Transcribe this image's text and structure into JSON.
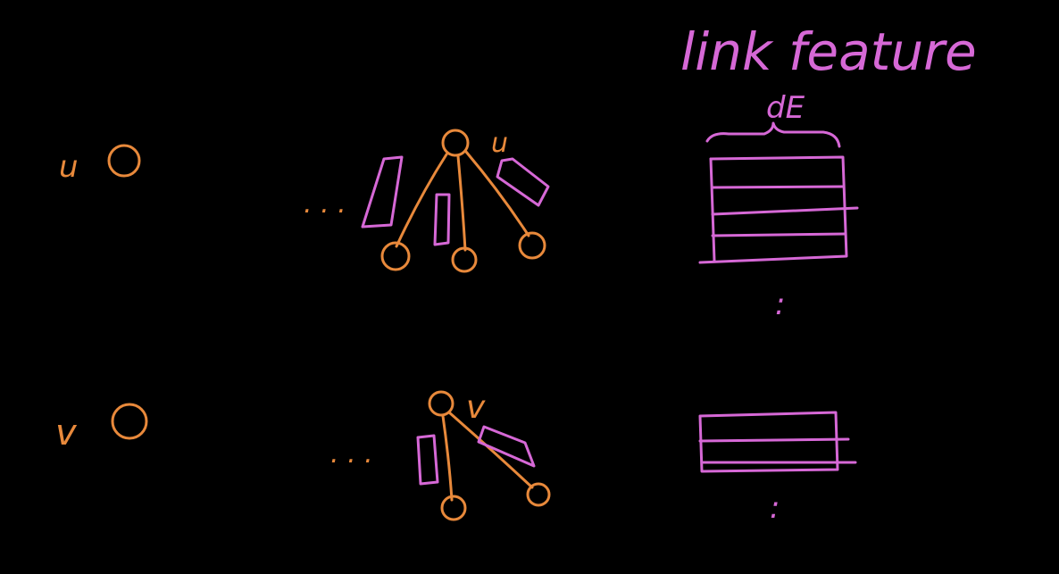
{
  "labels": {
    "u_left": "u",
    "v_left": "v",
    "u_neighborhood": "u",
    "v_neighborhood": "v",
    "link_feature": "link feature",
    "dim": "dE",
    "ellipsis_top": ". . .",
    "ellipsis_bottom": ". . .",
    "vdots_top": ":",
    "vdots_bottom": ":"
  },
  "colors": {
    "background": "#000000",
    "node": "#E8893B",
    "feature": "#D668D6"
  }
}
